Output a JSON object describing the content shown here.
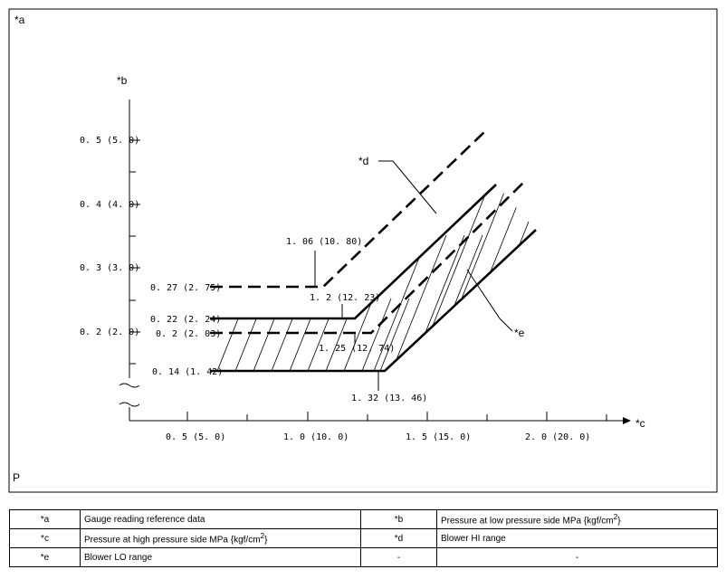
{
  "diagram": {
    "frame_label": "*a",
    "corner_mark": "P",
    "y_axis_marker": "*b",
    "x_axis_marker": "*c",
    "y_ticks": [
      "0. 5 (5. 0)",
      "0. 4 (4. 0)",
      "0. 3 (3. 0)",
      "0. 2 (2. 0)"
    ],
    "x_ticks": [
      "0. 5 (5. 0)",
      "1. 0 (10. 0)",
      "1. 5 (15. 0)",
      "2. 0 (20. 0)"
    ],
    "labels": {
      "hi_low": "0. 27 (2. 75)",
      "hi_knee": "1. 06 (10. 80)",
      "lo_upper_low": "0. 22 (2. 24)",
      "lo_upper_knee": "1. 2 (12. 23)",
      "hi2_low": "0. 2 (2. 03)",
      "hi2_knee": "1. 25 (12. 74)",
      "lo_lower_low": "0. 14 (1. 42)",
      "lo_lower_knee": "1. 32 (13. 46)",
      "callout_d": "*d",
      "callout_e": "*e"
    }
  },
  "legend": {
    "rows": [
      {
        "k1": "*a",
        "v1": "Gauge reading reference data",
        "k2": "*b",
        "v2": "Pressure at low pressure side MPa {kgf/cm",
        "v2_sup": "2",
        "v2_end": "}"
      },
      {
        "k1": "*c",
        "v1": "Pressure at high pressure side MPa {kgf/cm",
        "v1_sup": "2",
        "v1_end": "}",
        "k2": "*d",
        "v2": "Blower HI range"
      },
      {
        "k1": "*e",
        "v1": "Blower LO range",
        "k2": "-",
        "v2": "-"
      }
    ]
  }
}
